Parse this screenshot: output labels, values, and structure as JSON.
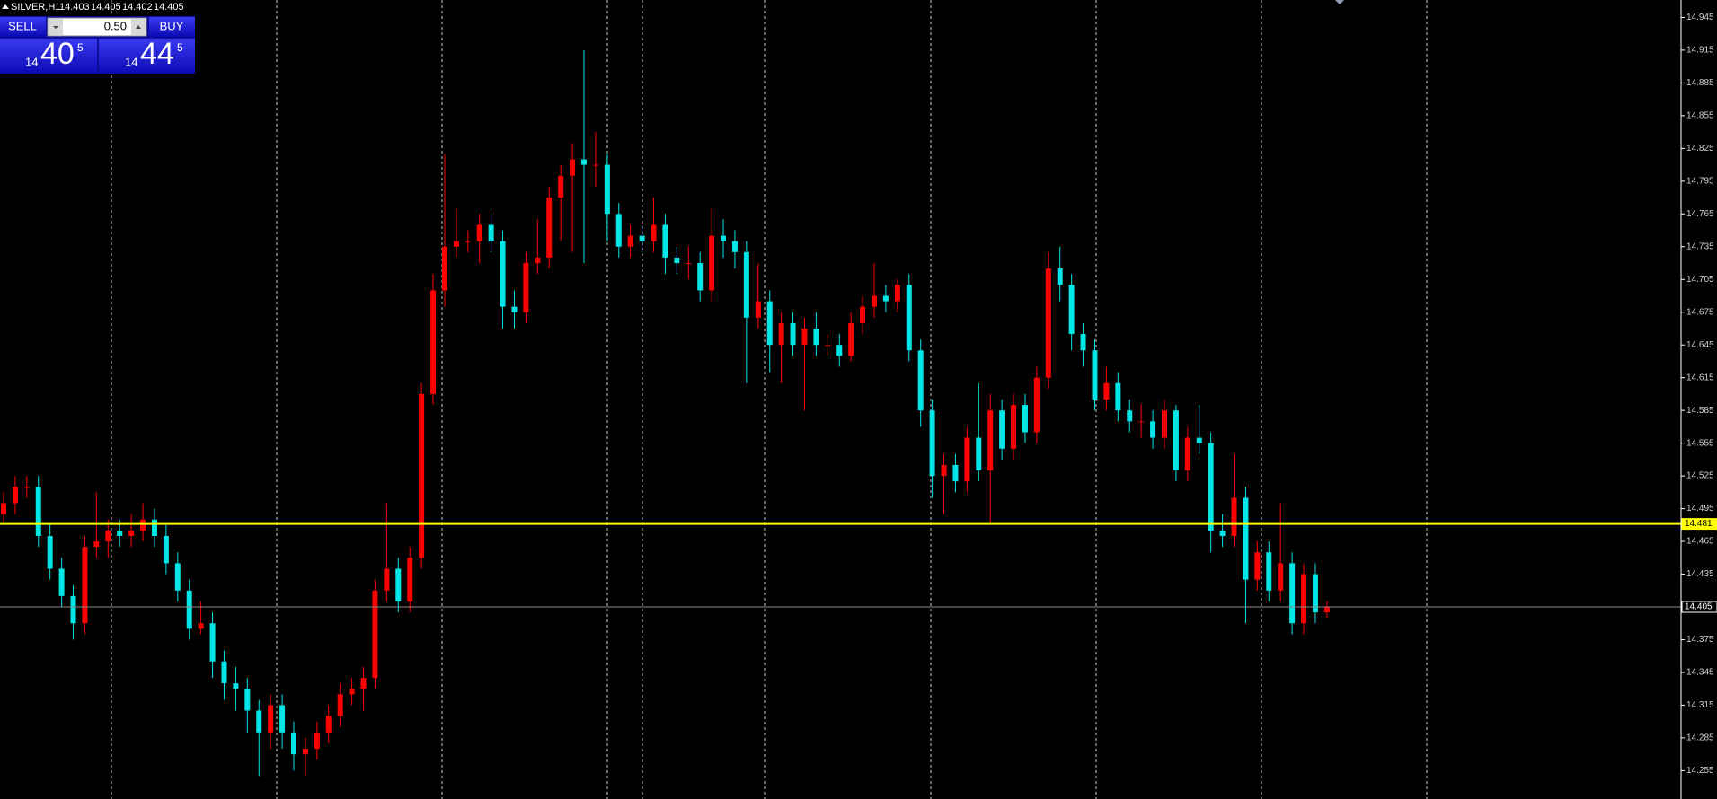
{
  "header": {
    "symbol": "SILVER,H1",
    "quote": [
      14.403,
      14.405,
      14.402,
      14.405
    ]
  },
  "trade_panel": {
    "sell_label": "SELL",
    "buy_label": "BUY",
    "lot": "0.50",
    "sell_price": {
      "big": "14",
      "main": "40",
      "small": "5"
    },
    "buy_price": {
      "big": "14",
      "main": "44",
      "small": "5"
    }
  },
  "chart_data": {
    "type": "candlestick",
    "up_color": "#ff0000",
    "down_color": "#00e5e5",
    "ylim": [
      14.229,
      14.961
    ],
    "yticks": [
      14.255,
      14.285,
      14.315,
      14.345,
      14.375,
      14.405,
      14.435,
      14.465,
      14.495,
      14.525,
      14.555,
      14.585,
      14.615,
      14.645,
      14.675,
      14.705,
      14.735,
      14.765,
      14.795,
      14.825,
      14.855,
      14.885,
      14.915,
      14.945
    ],
    "hlines": [
      {
        "value": 14.481,
        "color": "#ffff00"
      },
      {
        "value": 14.405,
        "color": "#8a8a8a"
      }
    ],
    "open": [
      14.49,
      14.5,
      14.515,
      14.515,
      14.47,
      14.44,
      14.415,
      14.39,
      14.46,
      14.465,
      14.475,
      14.47,
      14.475,
      14.485,
      14.47,
      14.445,
      14.42,
      14.385,
      14.39,
      14.355,
      14.335,
      14.33,
      14.31,
      14.29,
      14.315,
      14.29,
      14.27,
      14.275,
      14.29,
      14.305,
      14.325,
      14.33,
      14.34,
      14.42,
      14.44,
      14.41,
      14.45,
      14.6,
      14.695,
      14.735,
      14.74,
      14.74,
      14.755,
      14.74,
      14.68,
      14.675,
      14.72,
      14.725,
      14.78,
      14.8,
      14.815,
      14.81,
      14.81,
      14.765,
      14.735,
      14.745,
      14.74,
      14.755,
      14.725,
      14.72,
      14.72,
      14.695,
      14.745,
      14.74,
      14.73,
      14.67,
      14.685,
      14.645,
      14.665,
      14.645,
      14.66,
      14.645,
      14.645,
      14.635,
      14.665,
      14.68,
      14.69,
      14.685,
      14.7,
      14.64,
      14.585,
      14.525,
      14.535,
      14.52,
      14.56,
      14.53,
      14.585,
      14.55,
      14.59,
      14.565,
      14.615,
      14.715,
      14.7,
      14.655,
      14.64,
      14.595,
      14.61,
      14.585,
      14.575,
      14.575,
      14.56,
      14.585,
      14.53,
      14.56,
      14.555,
      14.475,
      14.47,
      14.505,
      14.43,
      14.455,
      14.42,
      14.445,
      14.39,
      14.435,
      14.4
    ],
    "high": [
      14.51,
      14.525,
      14.525,
      14.525,
      14.48,
      14.45,
      14.425,
      14.47,
      14.51,
      14.485,
      14.485,
      14.49,
      14.5,
      14.495,
      14.48,
      14.455,
      14.43,
      14.41,
      14.4,
      14.365,
      14.35,
      14.34,
      14.32,
      14.325,
      14.325,
      14.3,
      14.285,
      14.3,
      14.315,
      14.335,
      14.34,
      14.35,
      14.43,
      14.5,
      14.45,
      14.46,
      14.61,
      14.71,
      14.82,
      14.77,
      14.75,
      14.765,
      14.765,
      14.75,
      14.695,
      14.73,
      14.76,
      14.79,
      14.81,
      14.83,
      14.915,
      14.84,
      14.82,
      14.775,
      14.755,
      14.755,
      14.78,
      14.765,
      14.735,
      14.735,
      14.73,
      14.77,
      14.76,
      14.75,
      14.74,
      14.72,
      14.695,
      14.675,
      14.675,
      14.67,
      14.675,
      14.655,
      14.655,
      14.675,
      14.69,
      14.72,
      14.7,
      14.705,
      14.71,
      14.65,
      14.595,
      14.545,
      14.545,
      14.57,
      14.61,
      14.6,
      14.595,
      14.6,
      14.6,
      14.625,
      14.73,
      14.735,
      14.71,
      14.665,
      14.65,
      14.625,
      14.62,
      14.595,
      14.59,
      14.585,
      14.595,
      14.59,
      14.57,
      14.59,
      14.565,
      14.49,
      14.545,
      14.515,
      14.465,
      14.465,
      14.5,
      14.455,
      14.445,
      14.445,
      14.41
    ],
    "low": [
      14.48,
      14.49,
      14.505,
      14.46,
      14.43,
      14.405,
      14.375,
      14.38,
      14.45,
      14.45,
      14.46,
      14.46,
      14.465,
      14.46,
      14.435,
      14.41,
      14.375,
      14.38,
      14.34,
      14.32,
      14.31,
      14.29,
      14.25,
      14.275,
      14.275,
      14.255,
      14.25,
      14.265,
      14.28,
      14.295,
      14.315,
      14.31,
      14.33,
      14.41,
      14.4,
      14.4,
      14.44,
      14.59,
      14.68,
      14.725,
      14.73,
      14.72,
      14.73,
      14.66,
      14.66,
      14.665,
      14.71,
      14.715,
      14.74,
      14.73,
      14.72,
      14.79,
      14.74,
      14.725,
      14.725,
      14.73,
      14.73,
      14.71,
      14.71,
      14.705,
      14.685,
      14.685,
      14.725,
      14.715,
      14.61,
      14.66,
      14.62,
      14.61,
      14.635,
      14.585,
      14.635,
      14.635,
      14.625,
      14.63,
      14.655,
      14.67,
      14.675,
      14.675,
      14.63,
      14.57,
      14.505,
      14.49,
      14.51,
      14.51,
      14.52,
      14.48,
      14.54,
      14.54,
      14.555,
      14.555,
      14.605,
      14.685,
      14.64,
      14.625,
      14.585,
      14.585,
      14.575,
      14.565,
      14.56,
      14.55,
      14.55,
      14.52,
      14.52,
      14.545,
      14.455,
      14.46,
      14.46,
      14.39,
      14.42,
      14.41,
      14.41,
      14.38,
      14.38,
      14.39,
      14.395
    ],
    "close": [
      14.5,
      14.515,
      14.515,
      14.47,
      14.44,
      14.415,
      14.39,
      14.46,
      14.465,
      14.475,
      14.47,
      14.475,
      14.485,
      14.47,
      14.445,
      14.42,
      14.385,
      14.39,
      14.355,
      14.335,
      14.33,
      14.31,
      14.29,
      14.315,
      14.29,
      14.27,
      14.275,
      14.29,
      14.305,
      14.325,
      14.33,
      14.34,
      14.42,
      14.44,
      14.41,
      14.45,
      14.6,
      14.695,
      14.735,
      14.74,
      14.74,
      14.755,
      14.74,
      14.68,
      14.675,
      14.72,
      14.725,
      14.78,
      14.8,
      14.815,
      14.81,
      14.81,
      14.765,
      14.735,
      14.745,
      14.74,
      14.755,
      14.725,
      14.72,
      14.72,
      14.695,
      14.745,
      14.74,
      14.73,
      14.67,
      14.685,
      14.645,
      14.665,
      14.645,
      14.66,
      14.645,
      14.645,
      14.635,
      14.665,
      14.68,
      14.69,
      14.685,
      14.7,
      14.64,
      14.585,
      14.525,
      14.535,
      14.52,
      14.56,
      14.53,
      14.585,
      14.55,
      14.59,
      14.565,
      14.615,
      14.715,
      14.7,
      14.655,
      14.64,
      14.595,
      14.61,
      14.585,
      14.575,
      14.575,
      14.56,
      14.585,
      14.53,
      14.56,
      14.555,
      14.475,
      14.47,
      14.505,
      14.43,
      14.455,
      14.42,
      14.445,
      14.39,
      14.435,
      14.4,
      14.405
    ]
  }
}
